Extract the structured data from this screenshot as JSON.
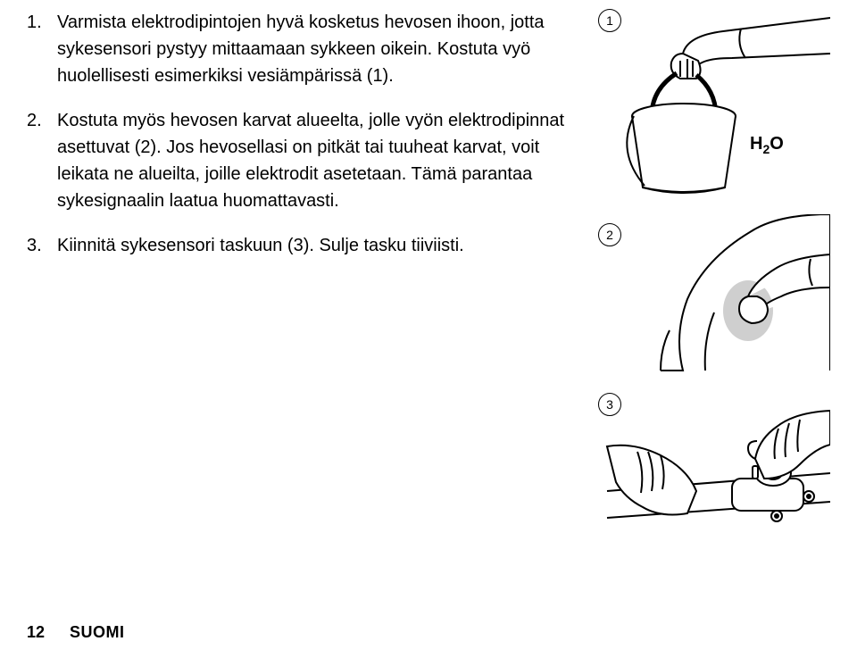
{
  "items": [
    {
      "num": "1.",
      "text": "Varmista elektrodipintojen hyvä kosketus hevosen ihoon, jotta sykesensori pystyy mittaamaan sykkeen oikein. Kostuta vyö huolellisesti esimerkiksi vesiämpärissä (1)."
    },
    {
      "num": "2.",
      "text": "Kostuta myös hevosen karvat alueelta, jolle vyön elektrodipinnat asettuvat (2). Jos hevosellasi on pitkät tai tuuheat karvat, voit leikata ne alueilta, joille elektrodit asetetaan. Tämä parantaa sykesignaalin laatua huomattavasti."
    },
    {
      "num": "3.",
      "text": "Kiinnitä sykesensori taskuun (3). Sulje tasku tiiviisti."
    }
  ],
  "illus": {
    "badge1": "1",
    "badge2": "2",
    "badge3": "3",
    "h2o_html": "H<span class=\"sub\">2</span>O"
  },
  "footer": {
    "page": "12",
    "lang": "SUOMI"
  },
  "colors": {
    "stroke": "#000000",
    "bg": "#ffffff"
  }
}
